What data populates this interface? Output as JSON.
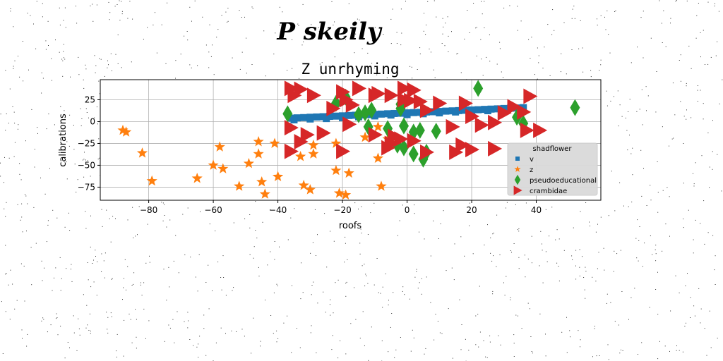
{
  "figure": {
    "suptitle": "P skeily"
  },
  "chart_data": {
    "type": "scatter",
    "title": "Z unrhyming",
    "xlabel": "roofs",
    "ylabel": "calibrations",
    "xlim": [
      -95,
      60
    ],
    "ylim": [
      -90,
      48
    ],
    "xticks": [
      -80,
      -60,
      -40,
      -20,
      0,
      20,
      40
    ],
    "xtick_labels": [
      "−80",
      "−60",
      "−40",
      "−20",
      "0",
      "20",
      "40"
    ],
    "yticks": [
      -75,
      -50,
      -25,
      0,
      25
    ],
    "ytick_labels": [
      "−75",
      "−50",
      "−25",
      "0",
      "25"
    ],
    "grid": true,
    "legend": {
      "title": "shadflower",
      "placement": "lower-right"
    },
    "series": [
      {
        "name": "v",
        "marker": "square",
        "color": "#1f77b4",
        "points": [
          [
            -36,
            4
          ],
          [
            -34,
            4.3
          ],
          [
            -32,
            4.6
          ],
          [
            -30,
            5
          ],
          [
            -28,
            5.3
          ],
          [
            -26,
            5.6
          ],
          [
            -24,
            6
          ],
          [
            -22,
            6.3
          ],
          [
            -20,
            6.6
          ],
          [
            -18,
            7
          ],
          [
            -16,
            7.3
          ],
          [
            -14,
            7.6
          ],
          [
            -12,
            8
          ],
          [
            -10,
            8.3
          ],
          [
            -8,
            8.6
          ],
          [
            -6,
            9
          ],
          [
            -4,
            9.3
          ],
          [
            -2,
            9.6
          ],
          [
            0,
            10
          ],
          [
            2,
            10.3
          ],
          [
            4,
            10.6
          ],
          [
            6,
            11
          ],
          [
            8,
            11.3
          ],
          [
            10,
            11.6
          ],
          [
            12,
            12
          ],
          [
            14,
            12.3
          ],
          [
            16,
            12.6
          ],
          [
            18,
            13
          ],
          [
            20,
            13.3
          ],
          [
            22,
            13.6
          ],
          [
            24,
            14
          ],
          [
            26,
            14.3
          ],
          [
            28,
            14.6
          ],
          [
            30,
            15
          ],
          [
            32,
            15.3
          ],
          [
            34,
            15.6
          ],
          [
            36,
            16
          ],
          [
            -35,
            2
          ],
          [
            -30,
            3
          ],
          [
            -25,
            3.5
          ],
          [
            -20,
            4.5
          ],
          [
            -15,
            5.5
          ],
          [
            -10,
            6.5
          ],
          [
            -5,
            7.5
          ],
          [
            0,
            8
          ],
          [
            5,
            9
          ],
          [
            10,
            10
          ],
          [
            15,
            11
          ],
          [
            20,
            11.5
          ],
          [
            25,
            12.5
          ],
          [
            30,
            13.5
          ],
          [
            35,
            14
          ]
        ]
      },
      {
        "name": "z",
        "marker": "star",
        "color": "#ff7f0e",
        "points": [
          [
            -88,
            -10
          ],
          [
            -87,
            -12
          ],
          [
            -82,
            -36
          ],
          [
            -79,
            -68
          ],
          [
            -65,
            -65
          ],
          [
            -60,
            -50
          ],
          [
            -58,
            -29
          ],
          [
            -57,
            -54
          ],
          [
            -52,
            -74
          ],
          [
            -49,
            -48
          ],
          [
            -46,
            -23
          ],
          [
            -46,
            -37
          ],
          [
            -45,
            -69
          ],
          [
            -44,
            -83
          ],
          [
            -41,
            -25
          ],
          [
            -40,
            -63
          ],
          [
            -33,
            -40
          ],
          [
            -32,
            -73
          ],
          [
            -30,
            -78
          ],
          [
            -29,
            -27
          ],
          [
            -29,
            -37
          ],
          [
            -22,
            -25
          ],
          [
            -22,
            -56
          ],
          [
            -21,
            -82
          ],
          [
            -19,
            -84
          ],
          [
            -18,
            -59
          ],
          [
            -13,
            -18
          ],
          [
            -9,
            -6
          ],
          [
            -9,
            -42
          ],
          [
            -8,
            -74
          ],
          [
            -6,
            -20
          ]
        ]
      },
      {
        "name": "pseudoeducational",
        "marker": "thin_diamond",
        "color": "#2ca02c",
        "points": [
          [
            -37,
            9
          ],
          [
            -22,
            21
          ],
          [
            -19,
            28
          ],
          [
            -15,
            8
          ],
          [
            -13,
            10
          ],
          [
            -12,
            -6
          ],
          [
            -11,
            13
          ],
          [
            -6,
            -8
          ],
          [
            -3,
            -27
          ],
          [
            -2,
            20
          ],
          [
            -2,
            15
          ],
          [
            -1,
            -5
          ],
          [
            -1,
            -30
          ],
          [
            2,
            -12
          ],
          [
            2,
            -37
          ],
          [
            4,
            -10
          ],
          [
            5,
            -43
          ],
          [
            6,
            -35
          ],
          [
            9,
            -11
          ],
          [
            22,
            38
          ],
          [
            34,
            5
          ],
          [
            36,
            -2
          ],
          [
            52,
            16
          ]
        ]
      },
      {
        "name": "crambidae",
        "marker": "triangle_right",
        "color": "#d62728",
        "points": [
          [
            -36,
            38
          ],
          [
            -35,
            30
          ],
          [
            -33,
            37
          ],
          [
            -29,
            30
          ],
          [
            -23,
            15
          ],
          [
            -20,
            34
          ],
          [
            -19,
            25
          ],
          [
            -17,
            19
          ],
          [
            -15,
            38
          ],
          [
            -10,
            30
          ],
          [
            -9,
            32
          ],
          [
            -5,
            30
          ],
          [
            -1,
            38
          ],
          [
            -1,
            25
          ],
          [
            1,
            24
          ],
          [
            2,
            36
          ],
          [
            4,
            23
          ],
          [
            6,
            13
          ],
          [
            10,
            21
          ],
          [
            18,
            21
          ],
          [
            20,
            6
          ],
          [
            23,
            -4
          ],
          [
            27,
            -1
          ],
          [
            30,
            10
          ],
          [
            33,
            17
          ],
          [
            36,
            11
          ],
          [
            38,
            29
          ],
          [
            37,
            -10
          ],
          [
            41,
            -10
          ],
          [
            -36,
            -7
          ],
          [
            -31,
            -15
          ],
          [
            -26,
            -13
          ],
          [
            -18,
            -3
          ],
          [
            -10,
            -15
          ],
          [
            -5,
            -25
          ],
          [
            -4,
            -17
          ],
          [
            -2,
            -20
          ],
          [
            -6,
            -30
          ],
          [
            2,
            -22
          ],
          [
            6,
            -35
          ],
          [
            14,
            -6
          ],
          [
            17,
            -27
          ],
          [
            15,
            -35
          ],
          [
            20,
            -32
          ],
          [
            27,
            -31
          ],
          [
            -36,
            -34
          ],
          [
            -33,
            -23
          ],
          [
            -20,
            -34
          ]
        ]
      }
    ]
  }
}
